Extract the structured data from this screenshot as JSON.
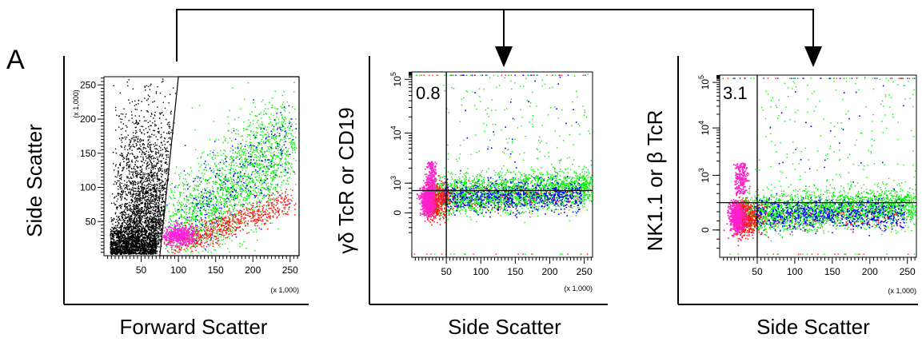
{
  "figure": {
    "panel_letter": "A"
  },
  "chart_data": [
    {
      "type": "scatter",
      "title": "",
      "xlabel": "Forward Scatter",
      "ylabel": "Side Scatter",
      "x_ticks": [
        "50",
        "100",
        "150",
        "200",
        "250"
      ],
      "y_ticks": [
        "50",
        "100",
        "150",
        "200",
        "250"
      ],
      "x_multiplier": "(x 1,000)",
      "y_multiplier": "(x 1,000)",
      "xlim": [
        0,
        262
      ],
      "ylim": [
        0,
        262
      ],
      "gate": {
        "shape": "polygon",
        "points": [
          [
            75,
            0
          ],
          [
            100,
            262
          ],
          [
            262,
            262
          ],
          [
            262,
            0
          ]
        ]
      },
      "series": [
        {
          "color": "#000000",
          "population": "ungated",
          "approx_center": [
            30,
            60
          ]
        },
        {
          "color": "#00ee00",
          "population": "gated",
          "approx_center": [
            150,
            130
          ]
        },
        {
          "color": "#0000ff",
          "population": "gated",
          "approx_center": [
            170,
            130
          ]
        },
        {
          "color": "#ff0000",
          "population": "gated",
          "approx_center": [
            140,
            50
          ]
        },
        {
          "color": "#ff00cc",
          "population": "gated",
          "approx_center": [
            100,
            35
          ]
        }
      ]
    },
    {
      "type": "scatter",
      "title": "",
      "xlabel": "Side Scatter",
      "ylabel": "γδ TcR or CD19",
      "x_ticks": [
        "50",
        "100",
        "150",
        "200",
        "250"
      ],
      "y_ticks": [
        "0",
        "10^3",
        "10^4",
        "10^5"
      ],
      "x_multiplier": "(x 1,000)",
      "xlim": [
        0,
        262
      ],
      "y_scale": "log",
      "quadrant_gate": {
        "x": 50,
        "y_level": "above 10^3"
      },
      "annotation": "0.8",
      "series": [
        {
          "color": "#00ee00",
          "population": "main cluster"
        },
        {
          "color": "#0000ff",
          "population": "main cluster"
        },
        {
          "color": "#ff0000",
          "population": "low side scatter"
        },
        {
          "color": "#ff00cc",
          "population": "low side scatter / positive"
        }
      ]
    },
    {
      "type": "scatter",
      "title": "",
      "xlabel": "Side Scatter",
      "ylabel": "NK1.1 or β TcR",
      "x_ticks": [
        "50",
        "100",
        "150",
        "200",
        "250"
      ],
      "y_ticks": [
        "0",
        "10^3",
        "10^4",
        "10^5"
      ],
      "x_multiplier": "(x 1,000)",
      "xlim": [
        0,
        262
      ],
      "y_scale": "log",
      "quadrant_gate": {
        "x": 50,
        "y_level": "below 10^3"
      },
      "annotation": "3.1",
      "series": [
        {
          "color": "#00ee00",
          "population": "main cluster"
        },
        {
          "color": "#0000ff",
          "population": "main cluster"
        },
        {
          "color": "#ff0000",
          "population": "low side scatter"
        },
        {
          "color": "#ff00cc",
          "population": "low side scatter / positive"
        }
      ]
    }
  ]
}
